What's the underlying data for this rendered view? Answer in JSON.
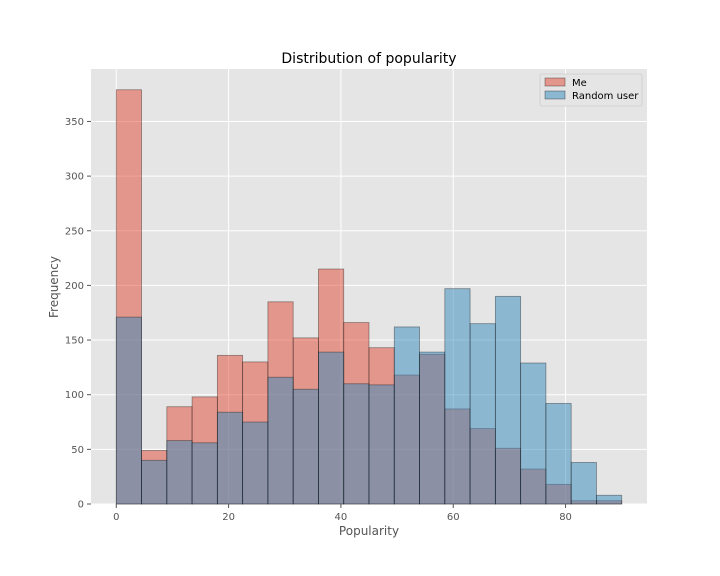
{
  "chart_data": {
    "type": "bar",
    "title": "Distribution of popularity",
    "xlabel": "Popularity",
    "ylabel": "Frequency",
    "xlim": [
      -4.5,
      94.5
    ],
    "ylim": [
      0,
      398
    ],
    "xticks": [
      0,
      20,
      40,
      60,
      80
    ],
    "yticks": [
      0,
      50,
      100,
      150,
      200,
      250,
      300,
      350
    ],
    "grid": true,
    "legend_position": "top-right",
    "series": [
      {
        "name": "Me",
        "color": "#E24A33",
        "opacity": 0.5,
        "bins": [
          [
            0,
            4.5,
            379
          ],
          [
            4.5,
            9,
            49
          ],
          [
            9,
            13.5,
            89
          ],
          [
            13.5,
            18,
            98
          ],
          [
            18,
            22.5,
            136
          ],
          [
            22.5,
            27,
            130
          ],
          [
            27,
            31.5,
            185
          ],
          [
            31.5,
            36,
            152
          ],
          [
            36,
            40.5,
            215
          ],
          [
            40.5,
            45,
            166
          ],
          [
            45,
            49.5,
            143
          ],
          [
            49.5,
            54,
            118
          ],
          [
            54,
            58.5,
            137
          ],
          [
            58.5,
            63,
            87
          ],
          [
            63,
            67.5,
            69
          ],
          [
            67.5,
            72,
            51
          ],
          [
            72,
            76.5,
            32
          ],
          [
            76.5,
            81,
            18
          ],
          [
            81,
            85.5,
            3
          ],
          [
            85.5,
            90,
            3
          ]
        ]
      },
      {
        "name": "Random user",
        "color": "#348ABD",
        "opacity": 0.5,
        "bins": [
          [
            0,
            4.5,
            171
          ],
          [
            4.5,
            9,
            40
          ],
          [
            9,
            13.5,
            58
          ],
          [
            13.5,
            18,
            56
          ],
          [
            18,
            22.5,
            84
          ],
          [
            22.5,
            27,
            75
          ],
          [
            27,
            31.5,
            116
          ],
          [
            31.5,
            36,
            105
          ],
          [
            36,
            40.5,
            139
          ],
          [
            40.5,
            45,
            110
          ],
          [
            45,
            49.5,
            109
          ],
          [
            49.5,
            54,
            162
          ],
          [
            54,
            58.5,
            139
          ],
          [
            58.5,
            63,
            197
          ],
          [
            63,
            67.5,
            165
          ],
          [
            67.5,
            72,
            190
          ],
          [
            72,
            76.5,
            129
          ],
          [
            76.5,
            81,
            92
          ],
          [
            81,
            85.5,
            38
          ],
          [
            85.5,
            90,
            8
          ]
        ]
      }
    ]
  }
}
